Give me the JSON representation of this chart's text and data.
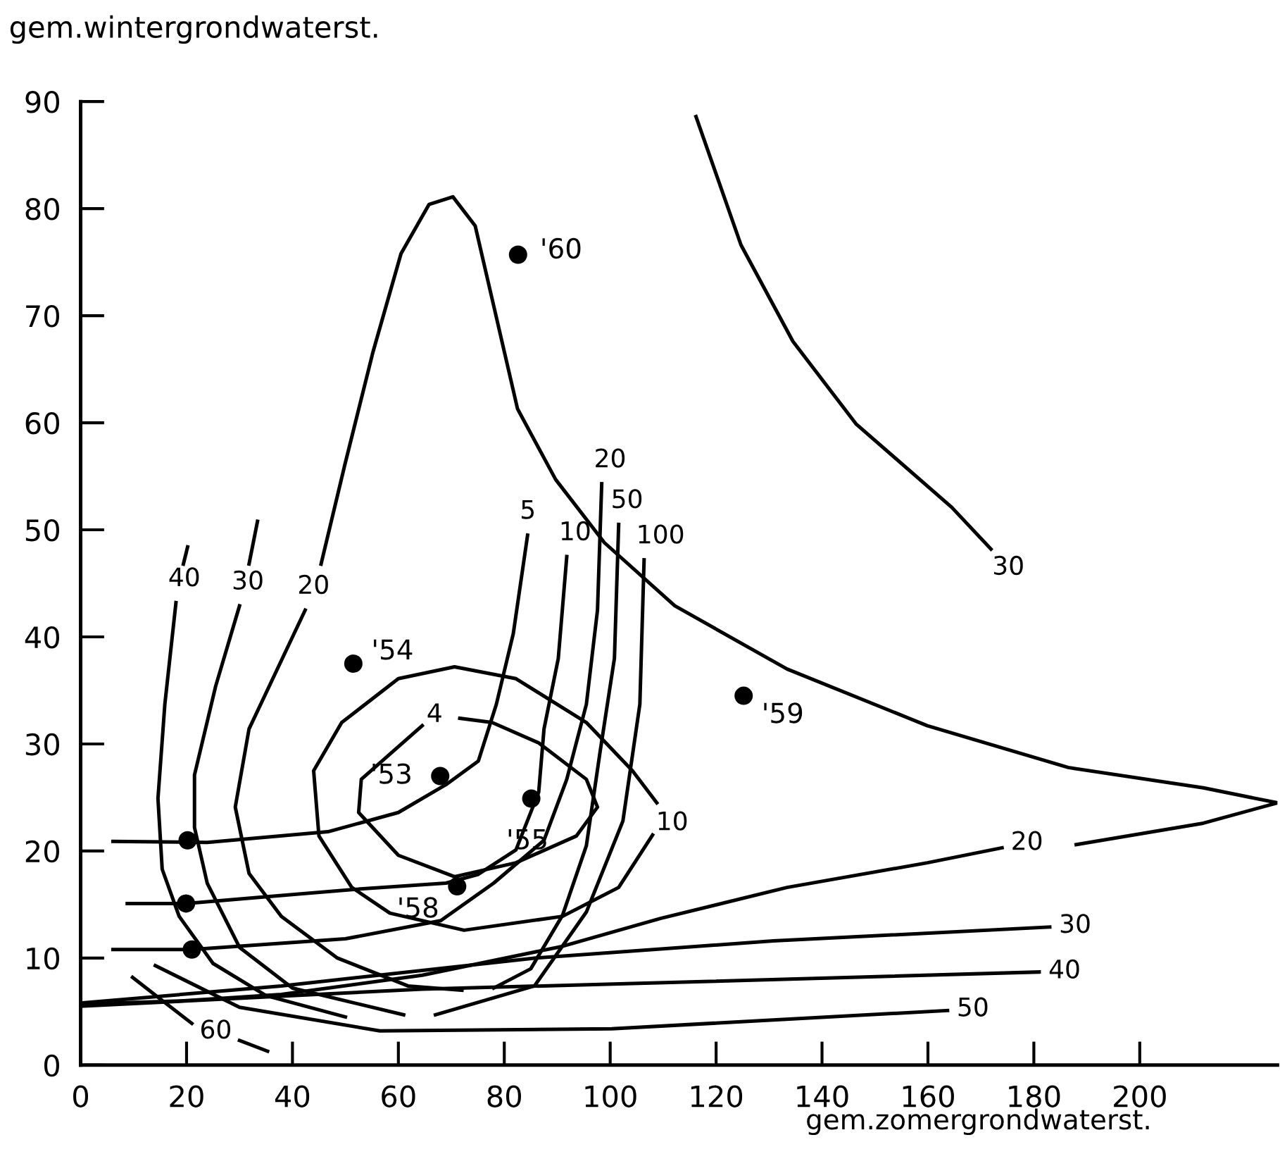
{
  "chart_data": {
    "type": "line",
    "xlabel": "gem.zomergrondwaterst.",
    "ylabel": "gem.wintergrondwaterst.",
    "xlim": [
      0,
      226
    ],
    "ylim": [
      0,
      90
    ],
    "xticks": [
      0,
      20,
      40,
      60,
      80,
      100,
      120,
      140,
      160,
      180,
      200
    ],
    "yticks": [
      0,
      10,
      20,
      30,
      40,
      50,
      60,
      70,
      80,
      90
    ],
    "grid": false,
    "legend": false,
    "line_style": "solid",
    "series": [
      {
        "color": "#000000",
        "x": [
          45.4,
          49.9,
          55.2,
          60.5,
          65.8,
          70.3,
          74.5,
          78.2,
          82.5,
          89.7,
          98.9,
          112.2,
          133.4,
          159.9,
          186.5,
          212,
          226,
          212,
          188
        ],
        "values": [
          46.8,
          56.1,
          66.6,
          75.8,
          80.4,
          81.1,
          78.4,
          70.5,
          61.3,
          54.7,
          48.8,
          42.9,
          37.0,
          31.7,
          27.8,
          25.9,
          24.5,
          22.6,
          20.6
        ]
      },
      {
        "name": "20",
        "color": "#000000",
        "x": [
          174,
          159.9,
          133.4,
          109.5,
          91,
          64.5,
          37.9,
          19,
          0
        ],
        "values": [
          20.3,
          18.9,
          16.6,
          13.7,
          11.1,
          8.4,
          6.6,
          6.0,
          5.7
        ]
      },
      {
        "name": "30",
        "color": "#000000",
        "x": [
          183,
          130.8,
          85.7,
          37.9,
          0
        ],
        "values": [
          12.9,
          11.6,
          10.0,
          7.4,
          5.8
        ]
      },
      {
        "name": "40",
        "color": "#000000",
        "x": [
          181,
          117.5,
          64.5,
          0
        ],
        "values": [
          8.7,
          7.8,
          7.1,
          5.5
        ]
      },
      {
        "name": "50",
        "color": "#000000",
        "x": [
          163.7,
          100.3,
          56.5,
          30,
          14.1
        ],
        "values": [
          5.1,
          3.4,
          3.2,
          5.4,
          9.3
        ]
      },
      {
        "color": "#000000",
        "x": [
          21,
          15,
          9.8
        ],
        "values": [
          3.9,
          6.2,
          8.2
        ]
      },
      {
        "name": "60",
        "color": "#000000",
        "x": [
          30,
          35.3
        ],
        "values": [
          2.3,
          1.3
        ]
      },
      {
        "name": "30",
        "color": "#000000",
        "x": [
          171.9,
          164.5,
          146.4,
          134.5,
          124.7,
          116.2
        ],
        "values": [
          48.2,
          52.1,
          59.9,
          67.6,
          76.6,
          88.6
        ]
      },
      {
        "name": "5",
        "color": "#000000",
        "x": [
          84.4,
          81.7,
          78.5,
          75.1,
          69,
          60,
          46.7,
          23.9,
          6.1
        ],
        "values": [
          49.5,
          40.3,
          33.7,
          28.4,
          26.2,
          23.6,
          21.8,
          20.8,
          20.9
        ]
      },
      {
        "name": "10",
        "color": "#000000",
        "x": [
          91.8,
          90.2,
          87.5,
          86.5,
          82.2,
          75,
          69,
          51.2,
          19.9,
          8.8
        ],
        "values": [
          47.5,
          38.0,
          31.4,
          25.5,
          20.1,
          17.8,
          17.0,
          16.4,
          15.1,
          15.1
        ]
      },
      {
        "name": "20",
        "color": "#000000",
        "x": [
          98.4,
          97.6,
          95.5,
          91.8,
          87.5,
          78,
          68,
          50,
          21,
          6.1
        ],
        "values": [
          54.3,
          42.5,
          33.7,
          26.7,
          21.0,
          17,
          13.5,
          11.8,
          10.8,
          10.8
        ]
      },
      {
        "name": "20",
        "color": "#000000",
        "x": [
          42.4,
          31.8,
          29.2,
          31.8,
          37.9,
          48.5,
          61.8,
          72
        ],
        "values": [
          42.5,
          31.4,
          24.1,
          17.9,
          13.9,
          10.0,
          7.4,
          7.0
        ]
      },
      {
        "name": "50",
        "color": "#000000",
        "x": [
          101.6,
          100.8,
          98.1,
          95.5,
          91,
          85,
          78
        ],
        "values": [
          50.5,
          38.0,
          29.3,
          20.5,
          14,
          9,
          7.2
        ]
      },
      {
        "name": "30",
        "color": "#000000",
        "x": [
          30,
          25.5,
          21.5,
          21.5,
          23.9,
          30,
          40,
          61
        ],
        "values": [
          42.9,
          35.4,
          27.1,
          22.2,
          17,
          11,
          7.2,
          4.7
        ]
      },
      {
        "name": "100",
        "color": "#000000",
        "x": [
          106.4,
          105.6,
          102.4,
          95.5,
          85.7,
          67
        ],
        "values": [
          47.2,
          33.7,
          22.8,
          14.3,
          7.4,
          4.7
        ]
      },
      {
        "color": "#000000",
        "x": [
          33.4,
          31.8
        ],
        "values": [
          50.8,
          46.8
        ]
      },
      {
        "name": "40",
        "color": "#000000",
        "x": [
          18,
          15.9,
          14.6,
          15.4,
          18.6,
          25,
          35,
          50
        ],
        "values": [
          43.2,
          33.7,
          24.9,
          18.3,
          13.9,
          9.5,
          6.5,
          4.5
        ]
      },
      {
        "color": "#000000",
        "x": [
          20.2,
          19.4
        ],
        "values": [
          48.4,
          46.8
        ]
      },
      {
        "name": "4",
        "color": "#000000",
        "x": [
          71.6,
          77.7,
          86.5,
          95.5,
          97.6,
          93.6,
          82.2,
          70.6,
          60,
          52.5,
          53,
          64.5
        ],
        "values": [
          32.4,
          32.0,
          30.1,
          26.7,
          24.1,
          21.4,
          18.9,
          17.6,
          19.6,
          23.6,
          26.7,
          31.7
        ]
      },
      {
        "name": "10",
        "color": "#000000",
        "x": [
          108.8,
          104.2,
          95.5,
          82.2,
          70.6,
          60,
          49.3,
          44,
          45,
          51.2,
          58.4,
          72.4,
          91,
          101.6,
          108
        ],
        "values": [
          24.5,
          27.5,
          32.0,
          36.1,
          37.2,
          36.1,
          32.0,
          27.5,
          21.4,
          16.6,
          14.2,
          12.6,
          13.9,
          16.6,
          21.5
        ]
      },
      {
        "type": "scatter",
        "name": "'60",
        "marker": "circle",
        "color": "#000000",
        "x": [
          82.6
        ],
        "values": [
          75.7
        ]
      },
      {
        "type": "scatter",
        "name": "'54",
        "marker": "circle",
        "color": "#000000",
        "x": [
          51.5
        ],
        "values": [
          37.5
        ]
      },
      {
        "type": "scatter",
        "name": "'53",
        "marker": "circle",
        "color": "#000000",
        "x": [
          67.9
        ],
        "values": [
          27.0
        ]
      },
      {
        "type": "scatter",
        "name": "'55",
        "marker": "circle",
        "color": "#000000",
        "x": [
          85.1
        ],
        "values": [
          24.9
        ]
      },
      {
        "type": "scatter",
        "name": "'58",
        "marker": "circle",
        "color": "#000000",
        "x": [
          71.1
        ],
        "values": [
          16.7
        ]
      },
      {
        "type": "scatter",
        "name": "'59",
        "marker": "circle",
        "color": "#000000",
        "x": [
          125.2
        ],
        "values": [
          34.5
        ]
      },
      {
        "type": "scatter",
        "marker": "circle",
        "color": "#000000",
        "x": [
          20.2,
          19.9,
          21
        ],
        "values": [
          21.0,
          15.1,
          10.8
        ]
      }
    ]
  }
}
